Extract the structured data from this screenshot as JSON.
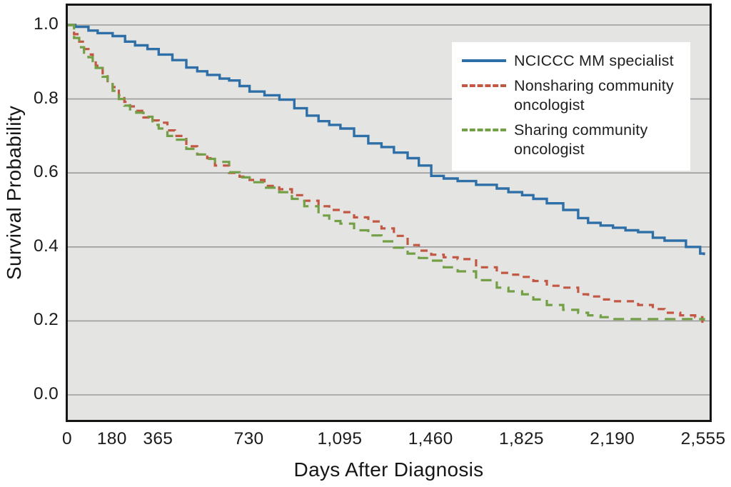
{
  "chart_data": {
    "type": "line",
    "subtype": "kaplan-meier-step",
    "title": "",
    "xlabel": "Days After Diagnosis",
    "ylabel": "Survival Probability",
    "xlim": [
      0,
      2555
    ],
    "ylim": [
      0.0,
      1.0
    ],
    "grid": "horizontal",
    "legend_position": "top-right",
    "plot_background": "#e4e4e2",
    "grid_color": "#9b9b9b",
    "frame_color": "#151515",
    "x_ticks": [
      {
        "value": 0,
        "label": "0"
      },
      {
        "value": 180,
        "label": "180"
      },
      {
        "value": 365,
        "label": "365"
      },
      {
        "value": 730,
        "label": "730"
      },
      {
        "value": 1095,
        "label": "1,095"
      },
      {
        "value": 1460,
        "label": "1,460"
      },
      {
        "value": 1825,
        "label": "1,825"
      },
      {
        "value": 2190,
        "label": "2,190"
      },
      {
        "value": 2555,
        "label": "2,555"
      }
    ],
    "y_ticks": [
      {
        "value": 1.0,
        "label": "1.0"
      },
      {
        "value": 0.8,
        "label": "0.8"
      },
      {
        "value": 0.6,
        "label": "0.6"
      },
      {
        "value": 0.4,
        "label": "0.4"
      },
      {
        "value": 0.2,
        "label": "0.2"
      },
      {
        "value": 0.0,
        "label": "0.0"
      }
    ],
    "series": [
      {
        "name": "nciccc-mm-specialist",
        "label": "NCICCC MM specialist",
        "color": "#2f6fa7",
        "dash": "solid",
        "points": [
          [
            0,
            1.0
          ],
          [
            30,
            0.995
          ],
          [
            83,
            0.985
          ],
          [
            120,
            0.978
          ],
          [
            180,
            0.97
          ],
          [
            230,
            0.955
          ],
          [
            270,
            0.945
          ],
          [
            320,
            0.935
          ],
          [
            365,
            0.92
          ],
          [
            420,
            0.905
          ],
          [
            476,
            0.885
          ],
          [
            520,
            0.875
          ],
          [
            560,
            0.865
          ],
          [
            610,
            0.855
          ],
          [
            648,
            0.85
          ],
          [
            690,
            0.835
          ],
          [
            730,
            0.82
          ],
          [
            790,
            0.81
          ],
          [
            850,
            0.798
          ],
          [
            910,
            0.775
          ],
          [
            960,
            0.755
          ],
          [
            1007,
            0.74
          ],
          [
            1050,
            0.73
          ],
          [
            1095,
            0.72
          ],
          [
            1150,
            0.7
          ],
          [
            1207,
            0.68
          ],
          [
            1260,
            0.67
          ],
          [
            1310,
            0.655
          ],
          [
            1365,
            0.64
          ],
          [
            1410,
            0.62
          ],
          [
            1460,
            0.592
          ],
          [
            1510,
            0.585
          ],
          [
            1566,
            0.578
          ],
          [
            1640,
            0.568
          ],
          [
            1723,
            0.558
          ],
          [
            1770,
            0.548
          ],
          [
            1825,
            0.54
          ],
          [
            1870,
            0.53
          ],
          [
            1924,
            0.518
          ],
          [
            1990,
            0.5
          ],
          [
            2050,
            0.478
          ],
          [
            2090,
            0.465
          ],
          [
            2140,
            0.458
          ],
          [
            2190,
            0.452
          ],
          [
            2240,
            0.445
          ],
          [
            2291,
            0.44
          ],
          [
            2350,
            0.425
          ],
          [
            2397,
            0.417
          ],
          [
            2483,
            0.4
          ],
          [
            2540,
            0.382
          ],
          [
            2555,
            0.378
          ]
        ]
      },
      {
        "name": "nonsharing-community-oncologist",
        "label": "Nonsharing community oncologist",
        "color": "#c25744",
        "dash": "dashed",
        "points": [
          [
            0,
            1.0
          ],
          [
            25,
            0.975
          ],
          [
            46,
            0.955
          ],
          [
            65,
            0.935
          ],
          [
            83,
            0.92
          ],
          [
            100,
            0.905
          ],
          [
            112,
            0.89
          ],
          [
            140,
            0.865
          ],
          [
            160,
            0.848
          ],
          [
            180,
            0.832
          ],
          [
            205,
            0.81
          ],
          [
            227,
            0.792
          ],
          [
            250,
            0.78
          ],
          [
            275,
            0.768
          ],
          [
            304,
            0.75
          ],
          [
            340,
            0.742
          ],
          [
            365,
            0.736
          ],
          [
            400,
            0.715
          ],
          [
            430,
            0.7
          ],
          [
            476,
            0.672
          ],
          [
            520,
            0.65
          ],
          [
            560,
            0.64
          ],
          [
            591,
            0.62
          ],
          [
            648,
            0.6
          ],
          [
            690,
            0.59
          ],
          [
            730,
            0.581
          ],
          [
            790,
            0.565
          ],
          [
            849,
            0.556
          ],
          [
            900,
            0.54
          ],
          [
            950,
            0.525
          ],
          [
            1007,
            0.51
          ],
          [
            1050,
            0.5
          ],
          [
            1095,
            0.494
          ],
          [
            1150,
            0.48
          ],
          [
            1207,
            0.469
          ],
          [
            1260,
            0.45
          ],
          [
            1310,
            0.43
          ],
          [
            1365,
            0.405
          ],
          [
            1410,
            0.39
          ],
          [
            1460,
            0.379
          ],
          [
            1510,
            0.372
          ],
          [
            1566,
            0.367
          ],
          [
            1640,
            0.345
          ],
          [
            1723,
            0.33
          ],
          [
            1770,
            0.325
          ],
          [
            1825,
            0.319
          ],
          [
            1870,
            0.308
          ],
          [
            1924,
            0.295
          ],
          [
            1990,
            0.29
          ],
          [
            2050,
            0.272
          ],
          [
            2090,
            0.266
          ],
          [
            2140,
            0.258
          ],
          [
            2190,
            0.253
          ],
          [
            2291,
            0.243
          ],
          [
            2350,
            0.232
          ],
          [
            2397,
            0.222
          ],
          [
            2460,
            0.215
          ],
          [
            2520,
            0.21
          ],
          [
            2549,
            0.19
          ],
          [
            2555,
            0.188
          ]
        ]
      },
      {
        "name": "sharing-community-oncologist",
        "label": "Sharing community oncologist",
        "color": "#73a046",
        "dash": "dashed",
        "points": [
          [
            0,
            1.0
          ],
          [
            25,
            0.965
          ],
          [
            46,
            0.94
          ],
          [
            65,
            0.925
          ],
          [
            83,
            0.913
          ],
          [
            100,
            0.898
          ],
          [
            112,
            0.884
          ],
          [
            140,
            0.86
          ],
          [
            160,
            0.84
          ],
          [
            180,
            0.822
          ],
          [
            205,
            0.8
          ],
          [
            227,
            0.782
          ],
          [
            250,
            0.772
          ],
          [
            275,
            0.763
          ],
          [
            304,
            0.752
          ],
          [
            340,
            0.73
          ],
          [
            365,
            0.72
          ],
          [
            400,
            0.7
          ],
          [
            430,
            0.69
          ],
          [
            476,
            0.665
          ],
          [
            520,
            0.65
          ],
          [
            560,
            0.638
          ],
          [
            591,
            0.63
          ],
          [
            648,
            0.602
          ],
          [
            690,
            0.588
          ],
          [
            730,
            0.575
          ],
          [
            790,
            0.56
          ],
          [
            849,
            0.548
          ],
          [
            900,
            0.53
          ],
          [
            950,
            0.51
          ],
          [
            1007,
            0.485
          ],
          [
            1050,
            0.47
          ],
          [
            1095,
            0.463
          ],
          [
            1150,
            0.445
          ],
          [
            1207,
            0.431
          ],
          [
            1260,
            0.415
          ],
          [
            1310,
            0.398
          ],
          [
            1365,
            0.382
          ],
          [
            1410,
            0.37
          ],
          [
            1460,
            0.363
          ],
          [
            1510,
            0.345
          ],
          [
            1566,
            0.334
          ],
          [
            1640,
            0.31
          ],
          [
            1723,
            0.29
          ],
          [
            1770,
            0.28
          ],
          [
            1825,
            0.272
          ],
          [
            1870,
            0.258
          ],
          [
            1924,
            0.243
          ],
          [
            1990,
            0.23
          ],
          [
            2050,
            0.222
          ],
          [
            2090,
            0.215
          ],
          [
            2140,
            0.21
          ],
          [
            2190,
            0.205
          ],
          [
            2490,
            0.205
          ],
          [
            2555,
            0.2
          ]
        ]
      }
    ]
  }
}
